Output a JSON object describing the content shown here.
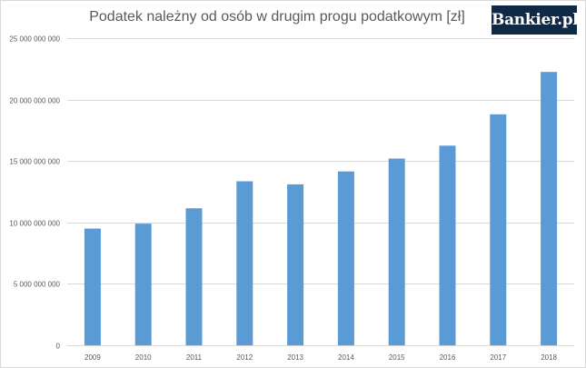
{
  "chart_data": {
    "type": "bar",
    "title": "Podatek należny od osób w drugim progu podatkowym [zł]",
    "xlabel": "",
    "ylabel": "",
    "categories": [
      "2009",
      "2010",
      "2011",
      "2012",
      "2013",
      "2014",
      "2015",
      "2016",
      "2017",
      "2018"
    ],
    "values": [
      9500000000,
      9900000000,
      11150000000,
      13350000000,
      13100000000,
      14150000000,
      15200000000,
      16250000000,
      18800000000,
      22250000000
    ],
    "ylim": [
      0,
      25000000000
    ],
    "yticks": [
      0,
      5000000000,
      10000000000,
      15000000000,
      20000000000,
      25000000000
    ],
    "ytick_labels": [
      "0",
      "5 000 000 000",
      "10 000 000 000",
      "15 000 000 000",
      "20 000 000 000",
      "25 000 000 000"
    ],
    "grid": true,
    "legend": "none",
    "bar_color": "#5b9bd5",
    "grid_color": "#d9d9d9"
  },
  "logo": {
    "text": "Bankier.pl"
  }
}
